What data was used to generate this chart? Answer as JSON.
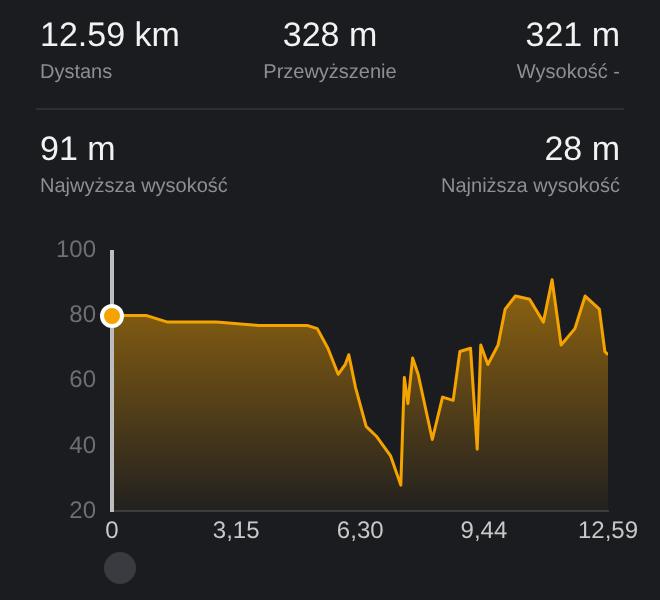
{
  "chart_data": [
    {
      "type": "other",
      "annotations": [
        "12.59 km",
        "Dystans",
        "328 m",
        "Przewyższenie",
        "321 m",
        "Wysokość -",
        "91 m",
        "Najwyższa wysokość",
        "28 m",
        "Najniższa wysokość"
      ]
    },
    {
      "type": "area",
      "x": [
        0,
        0.88,
        1.41,
        1.77,
        2.65,
        3.71,
        4.95,
        5.21,
        5.48,
        5.74,
        5.92,
        6.01,
        6.18,
        6.45,
        6.71,
        7.07,
        7.33,
        7.42,
        7.51,
        7.63,
        7.77,
        8.13,
        8.39,
        8.66,
        8.83,
        9.1,
        9.27,
        9.36,
        9.54,
        9.8,
        9.98,
        10.24,
        10.6,
        10.95,
        11.17,
        11.4,
        11.75,
        12.01,
        12.37,
        12.51,
        12.59
      ],
      "series": [
        {
          "color": "#f5a300",
          "values": [
            80,
            80,
            78,
            78,
            78,
            77,
            77,
            76,
            70,
            62,
            65,
            68,
            58,
            46,
            43,
            37,
            28,
            61,
            53,
            67,
            62,
            42,
            55,
            54,
            69,
            70,
            39,
            71,
            65,
            71,
            82,
            86,
            85,
            78,
            91,
            71,
            76,
            86,
            82,
            69,
            68
          ]
        }
      ],
      "xlim": [
        0,
        12.59
      ],
      "ylim": [
        20,
        100
      ],
      "xticks": [
        0,
        {
          "value": 3.15,
          "label": "3,15"
        },
        {
          "value": 6.3,
          "label": "6,30"
        },
        {
          "value": 9.44,
          "label": "9,44"
        },
        {
          "value": 12.59,
          "label": "12,59"
        }
      ],
      "yticks": [
        20,
        40,
        60,
        80,
        100
      ],
      "grid": false,
      "legend": false
    }
  ]
}
